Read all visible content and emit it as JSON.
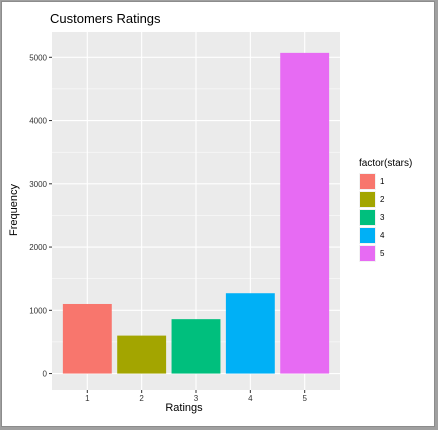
{
  "chart_data": {
    "type": "bar",
    "title": "Customers Ratings",
    "xlabel": "Ratings",
    "ylabel": "Frequency",
    "categories": [
      "1",
      "2",
      "3",
      "4",
      "5"
    ],
    "values": [
      1100,
      600,
      860,
      1270,
      5070
    ],
    "ylim": [
      -260,
      5400
    ],
    "yticks": [
      0,
      1000,
      2000,
      3000,
      4000,
      5000
    ],
    "yticks_labels": [
      "0",
      "1000",
      "2000",
      "3000",
      "4000",
      "5000"
    ],
    "grid": true,
    "legend": {
      "title": "factor(stars)",
      "position": "right",
      "entries": [
        "1",
        "2",
        "3",
        "4",
        "5"
      ]
    },
    "colors": [
      "#F8766D",
      "#A3A500",
      "#00BF7D",
      "#00B0F6",
      "#E76BF3"
    ],
    "panel_background": "#EBEBEB",
    "grid_color": "#FFFFFF"
  }
}
